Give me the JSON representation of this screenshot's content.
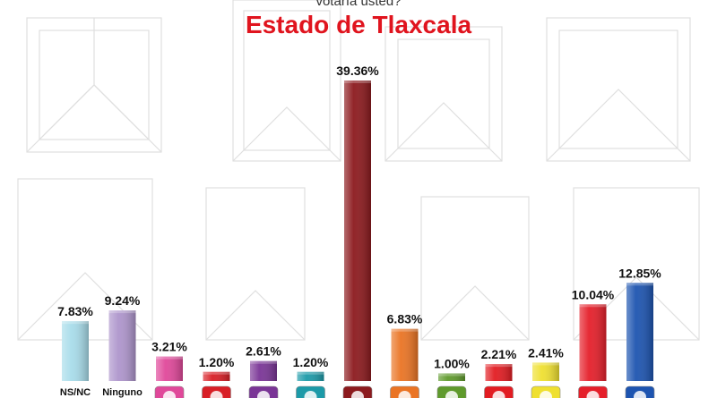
{
  "header": {
    "question": "votaría usted?",
    "title": "Estado de Tlaxcala"
  },
  "colors": {
    "title": "#e0141e",
    "background": "#ffffff",
    "pattern": "#d8d8d8"
  },
  "chart_data": {
    "type": "bar",
    "title": "Estado de Tlaxcala",
    "ylim": [
      0,
      40
    ],
    "grid": false,
    "categories": [
      "NS/NC",
      "Ninguno",
      "",
      "",
      "",
      "",
      "",
      "",
      "",
      "",
      "",
      "",
      ""
    ],
    "values": [
      7.83,
      9.24,
      3.21,
      1.2,
      2.61,
      1.2,
      39.36,
      6.83,
      1.0,
      2.21,
      2.41,
      10.04,
      12.85
    ],
    "value_labels": [
      "7.83%",
      "9.24%",
      "3.21%",
      "1.20%",
      "2.61%",
      "1.20%",
      "39.36%",
      "6.83%",
      "1.00%",
      "2.21%",
      "2.41%",
      "10.04%",
      "12.85%"
    ],
    "colors": [
      "#a8dcea",
      "#ae95cc",
      "#e0489a",
      "#d81f26",
      "#7a3596",
      "#1c9aa8",
      "#8c1a1e",
      "#ea7424",
      "#5f9a2c",
      "#e21c22",
      "#efe030",
      "#e51f2a",
      "#1d54b0"
    ],
    "logo_icons": [
      "",
      "",
      "pink-party-logo",
      "red-party-logo",
      "purple-party-logo",
      "teal-party-logo",
      "maroon-party-logo",
      "orange-party-logo",
      "green-party-logo",
      "red-star-party-logo",
      "yellow-party-logo",
      "pri-logo",
      "pan-logo"
    ]
  }
}
